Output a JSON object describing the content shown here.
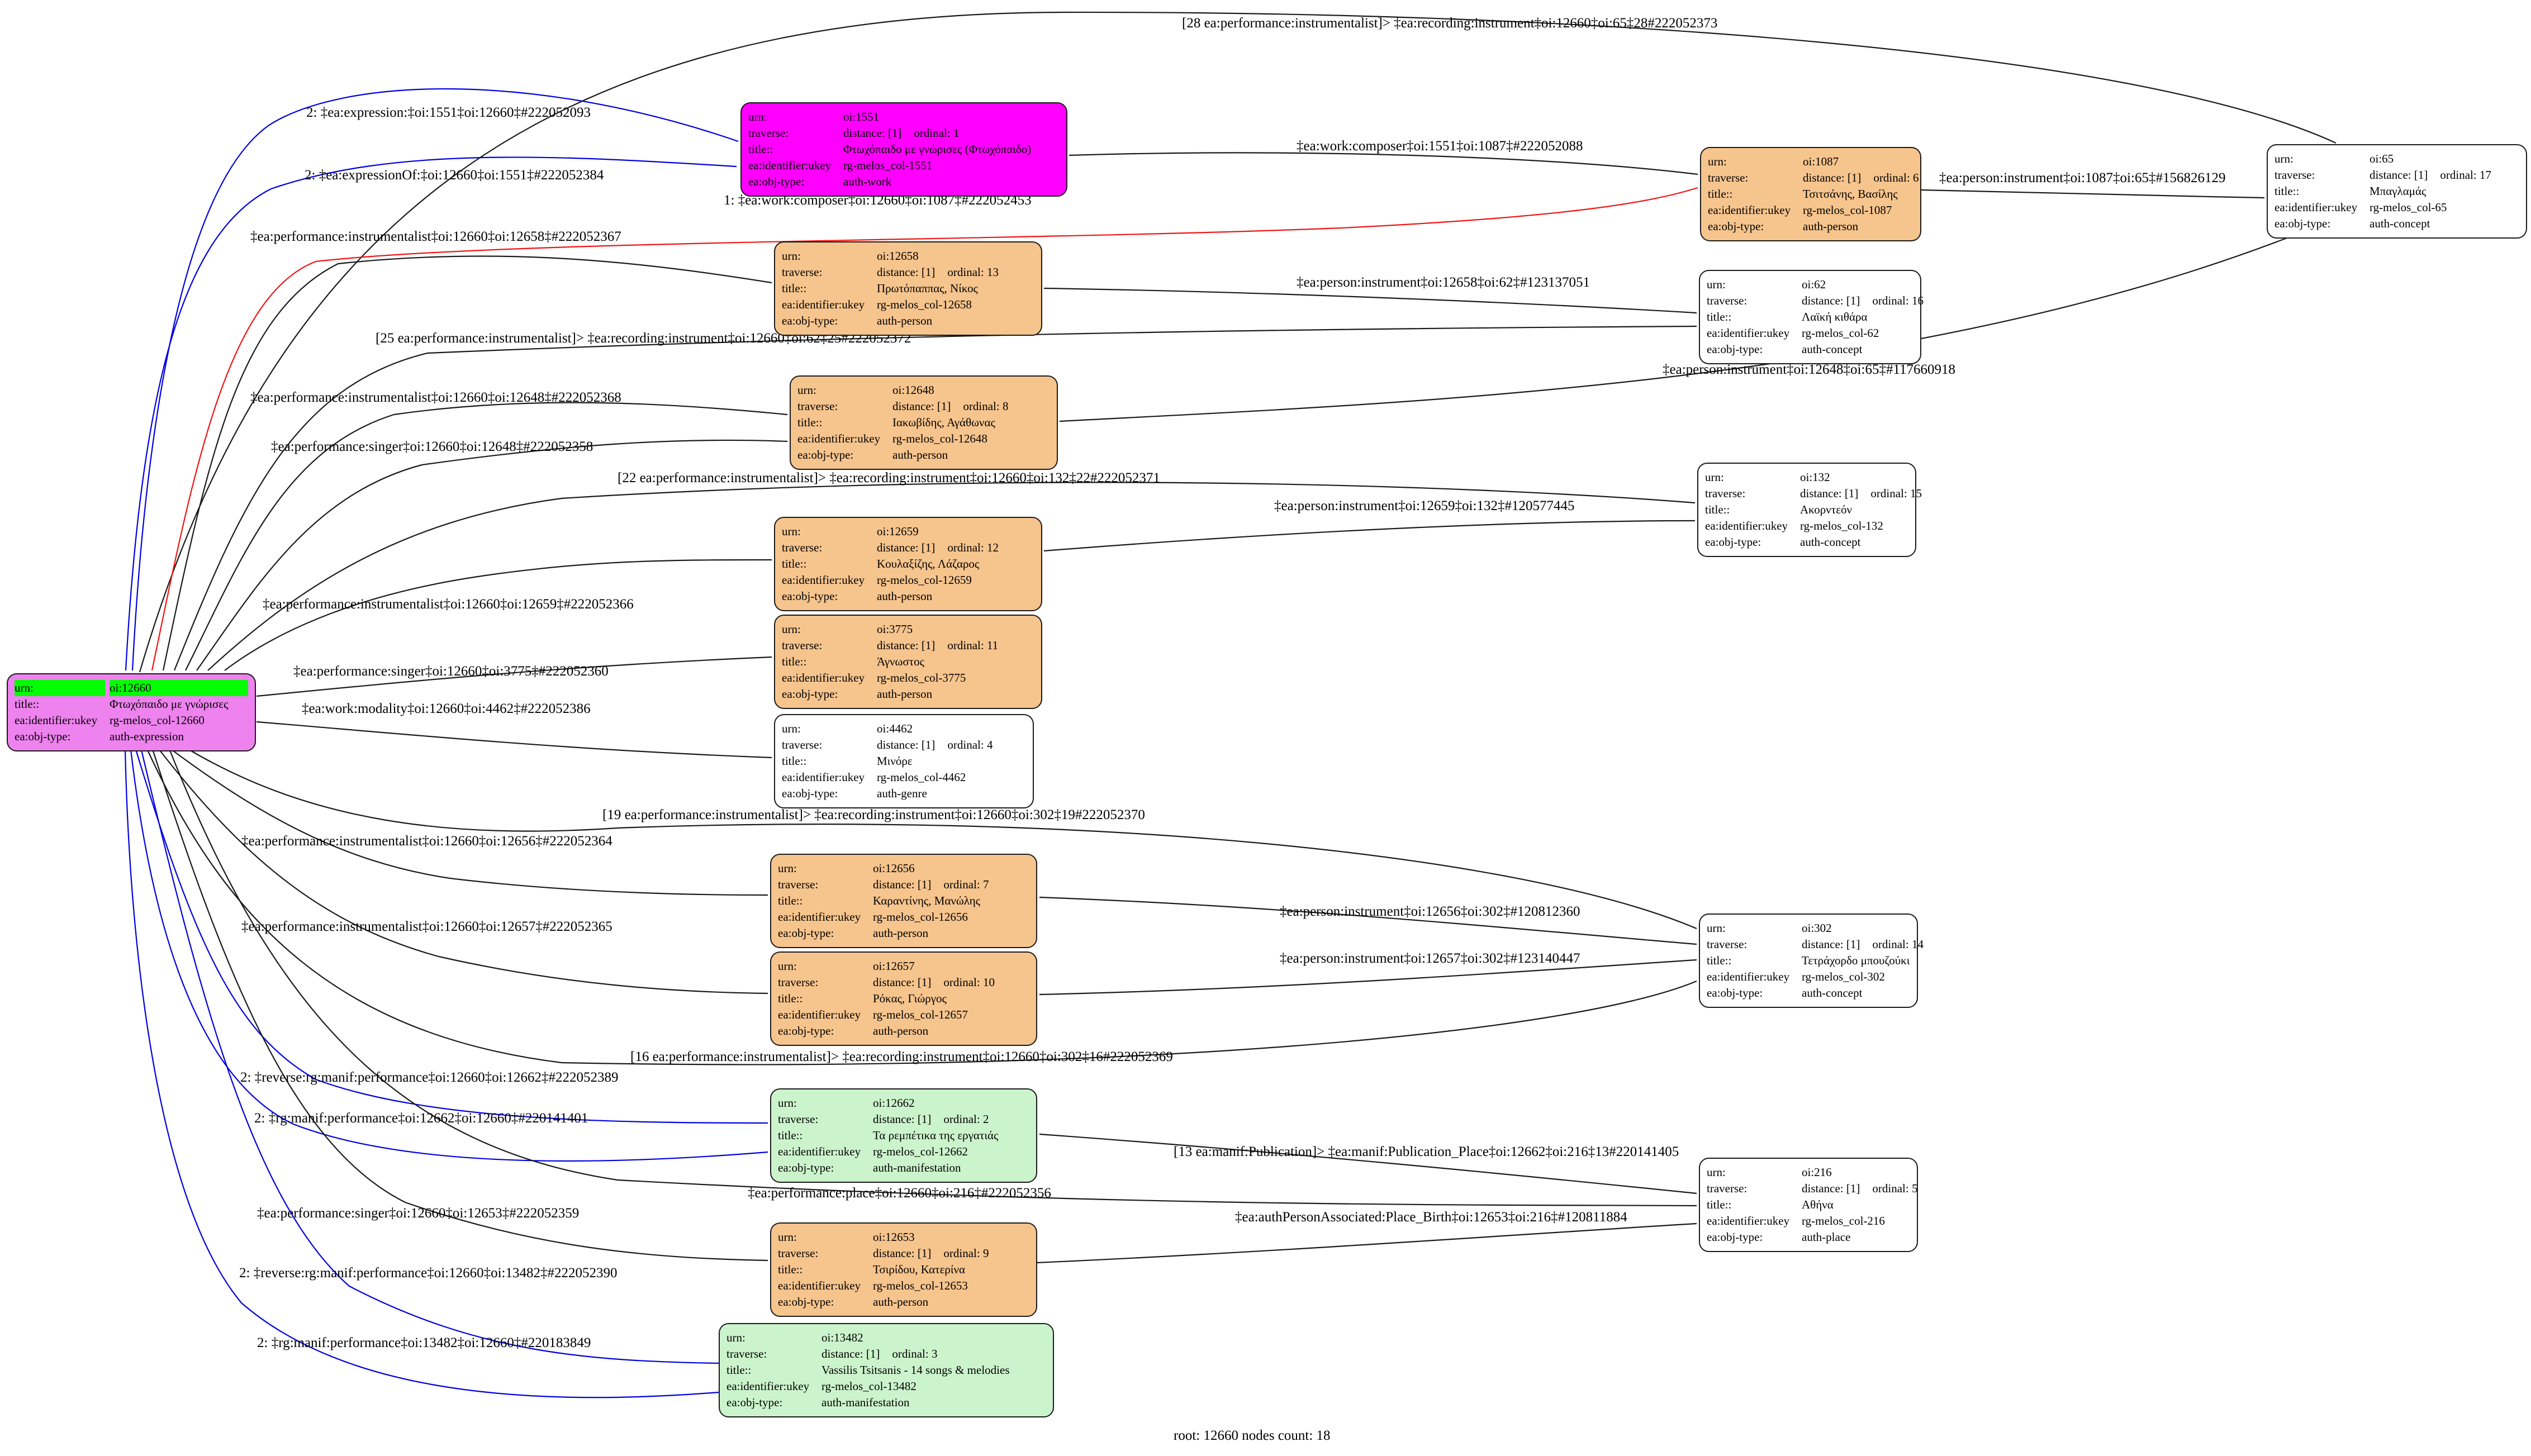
{
  "footer": "root: 12660 nodes count: 18",
  "row_labels": {
    "urn": "urn:",
    "traverse": "traverse:",
    "title": "title::",
    "ukey": "ea:identifier:ukey",
    "objtype": "ea:obj-type:"
  },
  "colors": {
    "root_fill": "#EE82EE",
    "work_fill": "#FF00FF",
    "person_fill": "#F6C48D",
    "manifestation_fill": "#CCF4CC",
    "plain_fill": "#FFFFFF",
    "urn_highlight": "#00FF00",
    "edge_black": "#1a1a1a",
    "edge_blue": "#0000E0",
    "edge_red": "#F01414"
  },
  "nodes": [
    {
      "id": "12660",
      "urn": "oi:12660",
      "title": "Φτωχόπαιδο με γνώρισες",
      "ukey": "rg-melos_col-12660",
      "objtype": "auth-expression",
      "fill": "#EE82EE",
      "highlight": true
    },
    {
      "id": "1551",
      "urn": "oi:1551",
      "distance": "distance: [1]",
      "ordinal": "ordinal: 1",
      "title": "Φτωχόπαιδο με γνώρισες (Φτωχόπαιδο)",
      "ukey": "rg-melos_col-1551",
      "objtype": "auth-work",
      "fill": "#FF00FF"
    },
    {
      "id": "12658",
      "urn": "oi:12658",
      "distance": "distance: [1]",
      "ordinal": "ordinal: 13",
      "title": "Πρωτόπαππας, Νίκος",
      "ukey": "rg-melos_col-12658",
      "objtype": "auth-person",
      "fill": "#F6C48D"
    },
    {
      "id": "12648",
      "urn": "oi:12648",
      "distance": "distance: [1]",
      "ordinal": "ordinal: 8",
      "title": "Ιακωβίδης, Αγάθωνας",
      "ukey": "rg-melos_col-12648",
      "objtype": "auth-person",
      "fill": "#F6C48D"
    },
    {
      "id": "12659",
      "urn": "oi:12659",
      "distance": "distance: [1]",
      "ordinal": "ordinal: 12",
      "title": "Κουλαξίζης, Λάζαρος",
      "ukey": "rg-melos_col-12659",
      "objtype": "auth-person",
      "fill": "#F6C48D"
    },
    {
      "id": "3775",
      "urn": "oi:3775",
      "distance": "distance: [1]",
      "ordinal": "ordinal: 11",
      "title": "Άγνωστος",
      "ukey": "rg-melos_col-3775",
      "objtype": "auth-person",
      "fill": "#F6C48D"
    },
    {
      "id": "4462",
      "urn": "oi:4462",
      "distance": "distance: [1]",
      "ordinal": "ordinal: 4",
      "title": "Μινόρε",
      "ukey": "rg-melos_col-4462",
      "objtype": "auth-genre",
      "fill": "#FFFFFF"
    },
    {
      "id": "12656",
      "urn": "oi:12656",
      "distance": "distance: [1]",
      "ordinal": "ordinal: 7",
      "title": "Καραντίνης, Μανώλης",
      "ukey": "rg-melos_col-12656",
      "objtype": "auth-person",
      "fill": "#F6C48D"
    },
    {
      "id": "12657",
      "urn": "oi:12657",
      "distance": "distance: [1]",
      "ordinal": "ordinal: 10",
      "title": "Ρόκας, Γιώργος",
      "ukey": "rg-melos_col-12657",
      "objtype": "auth-person",
      "fill": "#F6C48D"
    },
    {
      "id": "12662",
      "urn": "oi:12662",
      "distance": "distance: [1]",
      "ordinal": "ordinal: 2",
      "title": "Τα ρεμπέτικα της εργατιάς",
      "ukey": "rg-melos_col-12662",
      "objtype": "auth-manifestation",
      "fill": "#CCF4CC"
    },
    {
      "id": "12653",
      "urn": "oi:12653",
      "distance": "distance: [1]",
      "ordinal": "ordinal: 9",
      "title": "Τσιρίδου, Κατερίνα",
      "ukey": "rg-melos_col-12653",
      "objtype": "auth-person",
      "fill": "#F6C48D"
    },
    {
      "id": "13482",
      "urn": "oi:13482",
      "distance": "distance: [1]",
      "ordinal": "ordinal: 3",
      "title": "Vassilis Tsitsanis - 14 songs & melodies",
      "ukey": "rg-melos_col-13482",
      "objtype": "auth-manifestation",
      "fill": "#CCF4CC"
    },
    {
      "id": "1087",
      "urn": "oi:1087",
      "distance": "distance: [1]",
      "ordinal": "ordinal: 6",
      "title": "Τσιτσάνης, Βασίλης",
      "ukey": "rg-melos_col-1087",
      "objtype": "auth-person",
      "fill": "#F6C48D"
    },
    {
      "id": "62",
      "urn": "oi:62",
      "distance": "distance: [1]",
      "ordinal": "ordinal: 16",
      "title": "Λαϊκή κιθάρα",
      "ukey": "rg-melos_col-62",
      "objtype": "auth-concept",
      "fill": "#FFFFFF"
    },
    {
      "id": "132",
      "urn": "oi:132",
      "distance": "distance: [1]",
      "ordinal": "ordinal: 15",
      "title": "Ακορντεόν",
      "ukey": "rg-melos_col-132",
      "objtype": "auth-concept",
      "fill": "#FFFFFF"
    },
    {
      "id": "302",
      "urn": "oi:302",
      "distance": "distance: [1]",
      "ordinal": "ordinal: 14",
      "title": "Τετράχορδο μπουζούκι",
      "ukey": "rg-melos_col-302",
      "objtype": "auth-concept",
      "fill": "#FFFFFF"
    },
    {
      "id": "216",
      "urn": "oi:216",
      "distance": "distance: [1]",
      "ordinal": "ordinal: 5",
      "title": "Αθήνα",
      "ukey": "rg-melos_col-216",
      "objtype": "auth-place",
      "fill": "#FFFFFF"
    },
    {
      "id": "65",
      "urn": "oi:65",
      "distance": "distance: [1]",
      "ordinal": "ordinal: 17",
      "title": "Μπαγλαμάς",
      "ukey": "rg-melos_col-65",
      "objtype": "auth-concept",
      "fill": "#FFFFFF"
    }
  ],
  "edges": [
    {
      "label": "[28 ea:performance:instrumentalist]> ‡ea:recording:instrument‡oi:12660‡oi:65‡28#222052373",
      "color": "black"
    },
    {
      "label": "2: ‡ea:expression:‡oi:1551‡oi:12660‡#222052093",
      "color": "blue"
    },
    {
      "label": "2: ‡ea:expressionOf:‡oi:12660‡oi:1551‡#222052384",
      "color": "blue"
    },
    {
      "label": "1: ‡ea:work:composer‡oi:12660‡oi:1087‡#222052453",
      "color": "red"
    },
    {
      "label": "‡ea:work:composer‡oi:1551‡oi:1087‡#222052088",
      "color": "black"
    },
    {
      "label": "‡ea:person:instrument‡oi:1087‡oi:65‡#156826129",
      "color": "black"
    },
    {
      "label": "‡ea:performance:instrumentalist‡oi:12660‡oi:12658‡#222052367",
      "color": "black"
    },
    {
      "label": "‡ea:person:instrument‡oi:12658‡oi:62‡#123137051",
      "color": "black"
    },
    {
      "label": "[25 ea:performance:instrumentalist]> ‡ea:recording:instrument‡oi:12660‡oi:62‡25#222052372",
      "color": "black"
    },
    {
      "label": "‡ea:person:instrument‡oi:12648‡oi:65‡#117660918",
      "color": "black"
    },
    {
      "label": "‡ea:performance:instrumentalist‡oi:12660‡oi:12648‡#222052368",
      "color": "black"
    },
    {
      "label": "‡ea:performance:singer‡oi:12660‡oi:12648‡#222052358",
      "color": "black"
    },
    {
      "label": "[22 ea:performance:instrumentalist]> ‡ea:recording:instrument‡oi:12660‡oi:132‡22#222052371",
      "color": "black"
    },
    {
      "label": "‡ea:person:instrument‡oi:12659‡oi:132‡#120577445",
      "color": "black"
    },
    {
      "label": "‡ea:performance:instrumentalist‡oi:12660‡oi:12659‡#222052366",
      "color": "black"
    },
    {
      "label": "‡ea:performance:singer‡oi:12660‡oi:3775‡#222052360",
      "color": "black"
    },
    {
      "label": "‡ea:work:modality‡oi:12660‡oi:4462‡#222052386",
      "color": "black"
    },
    {
      "label": "[19 ea:performance:instrumentalist]> ‡ea:recording:instrument‡oi:12660‡oi:302‡19#222052370",
      "color": "black"
    },
    {
      "label": "‡ea:performance:instrumentalist‡oi:12660‡oi:12656‡#222052364",
      "color": "black"
    },
    {
      "label": "‡ea:performance:instrumentalist‡oi:12660‡oi:12657‡#222052365",
      "color": "black"
    },
    {
      "label": "‡ea:person:instrument‡oi:12656‡oi:302‡#120812360",
      "color": "black"
    },
    {
      "label": "‡ea:person:instrument‡oi:12657‡oi:302‡#123140447",
      "color": "black"
    },
    {
      "label": "[16 ea:performance:instrumentalist]> ‡ea:recording:instrument‡oi:12660‡oi:302‡16#222052369",
      "color": "black"
    },
    {
      "label": "2: ‡reverse:rg:manif:performance‡oi:12660‡oi:12662‡#222052389",
      "color": "blue"
    },
    {
      "label": "2: ‡rg:manif:performance‡oi:12662‡oi:12660‡#220141401",
      "color": "blue"
    },
    {
      "label": "[13 ea:manif:Publication]> ‡ea:manif:Publication_Place‡oi:12662‡oi:216‡13#220141405",
      "color": "black"
    },
    {
      "label": "‡ea:performance:place‡oi:12660‡oi:216‡#222052356",
      "color": "black"
    },
    {
      "label": "‡ea:authPersonAssociated:Place_Birth‡oi:12653‡oi:216‡#120811884",
      "color": "black"
    },
    {
      "label": "‡ea:performance:singer‡oi:12660‡oi:12653‡#222052359",
      "color": "black"
    },
    {
      "label": "2: ‡reverse:rg:manif:performance‡oi:12660‡oi:13482‡#222052390",
      "color": "blue"
    },
    {
      "label": "2: ‡rg:manif:performance‡oi:13482‡oi:12660‡#220183849",
      "color": "blue"
    }
  ]
}
